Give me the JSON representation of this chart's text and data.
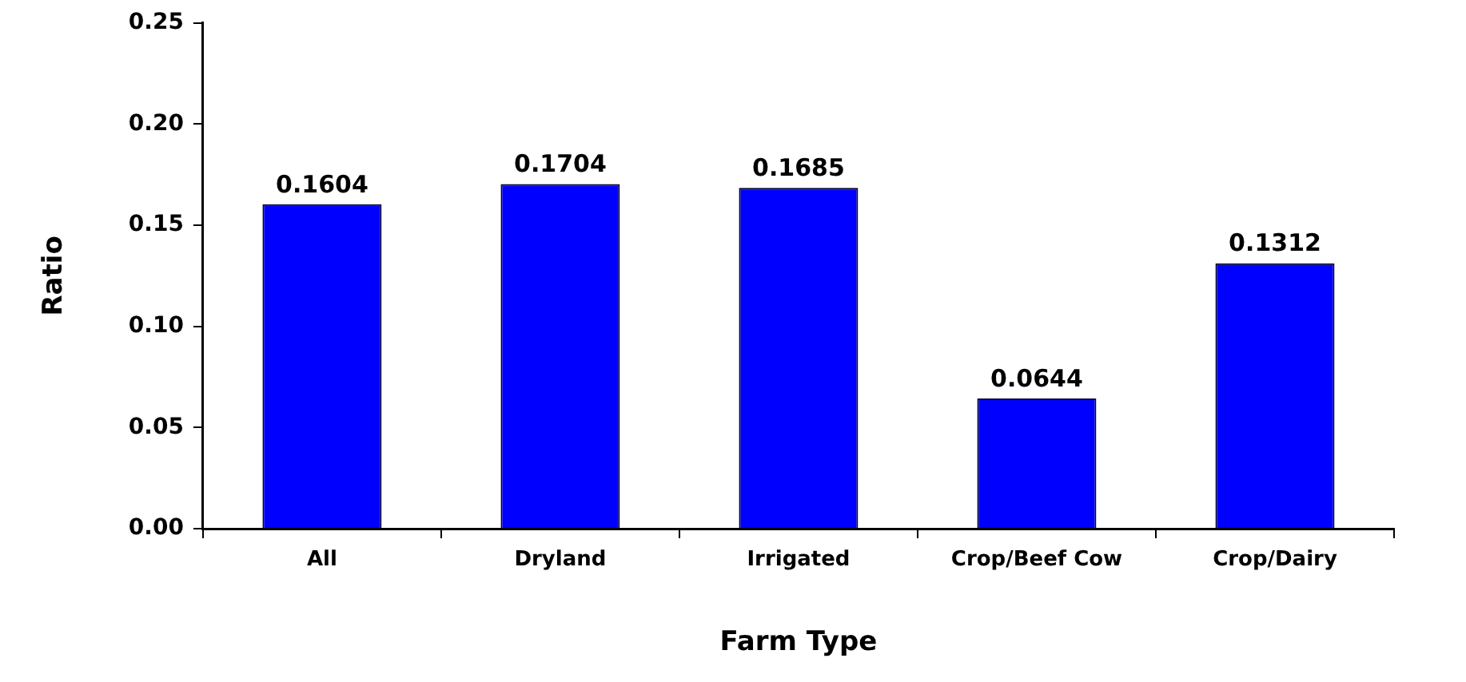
{
  "chart_data": {
    "type": "bar",
    "xlabel": "Farm Type",
    "ylabel": "Ratio",
    "categories": [
      "All",
      "Dryland",
      "Irrigated",
      "Crop/Beef Cow",
      "Crop/Dairy"
    ],
    "values": [
      0.1604,
      0.1704,
      0.1685,
      0.0644,
      0.1312
    ],
    "color": "#0000ff",
    "ylim": [
      0,
      0.25
    ],
    "yticks": [
      {
        "value": 0,
        "label": "0.00"
      },
      {
        "value": 0.05,
        "label": "0.05"
      },
      {
        "value": 0.1,
        "label": "0.10"
      },
      {
        "value": 0.15,
        "label": "0.15"
      },
      {
        "value": 0.2,
        "label": "0.20"
      },
      {
        "value": 0.25,
        "label": "0.25"
      }
    ],
    "grid": false,
    "legend": false,
    "data_labels": true
  }
}
